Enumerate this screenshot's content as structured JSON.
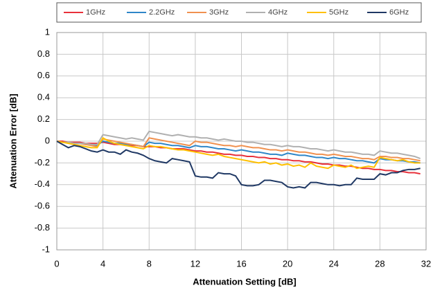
{
  "chart_data": {
    "type": "line",
    "xlabel": "Attenuation Setting [dB]",
    "ylabel": "Attenuation Error [dB]",
    "x": [
      0,
      0.5,
      1,
      1.5,
      2,
      2.5,
      3,
      3.5,
      4,
      4.5,
      5,
      5.5,
      6,
      6.5,
      7,
      7.5,
      8,
      8.5,
      9,
      9.5,
      10,
      10.5,
      11,
      11.5,
      12,
      12.5,
      13,
      13.5,
      14,
      14.5,
      15,
      15.5,
      16,
      16.5,
      17,
      17.5,
      18,
      18.5,
      19,
      19.5,
      20,
      20.5,
      21,
      21.5,
      22,
      22.5,
      23,
      23.5,
      24,
      24.5,
      25,
      25.5,
      26,
      26.5,
      27,
      27.5,
      28,
      28.5,
      29,
      29.5,
      30,
      30.5,
      31,
      31.5
    ],
    "series": [
      {
        "name": "1GHz",
        "color": "#e8303a",
        "values": [
          0,
          0,
          -0.01,
          -0.01,
          -0.01,
          -0.02,
          -0.02,
          -0.02,
          -0.01,
          -0.02,
          -0.03,
          -0.03,
          -0.04,
          -0.04,
          -0.04,
          -0.05,
          -0.05,
          -0.05,
          -0.06,
          -0.06,
          -0.07,
          -0.07,
          -0.07,
          -0.08,
          -0.09,
          -0.09,
          -0.1,
          -0.1,
          -0.11,
          -0.12,
          -0.12,
          -0.13,
          -0.13,
          -0.14,
          -0.14,
          -0.15,
          -0.15,
          -0.16,
          -0.16,
          -0.17,
          -0.17,
          -0.18,
          -0.18,
          -0.19,
          -0.19,
          -0.2,
          -0.21,
          -0.21,
          -0.22,
          -0.22,
          -0.23,
          -0.23,
          -0.24,
          -0.25,
          -0.25,
          -0.26,
          -0.26,
          -0.27,
          -0.27,
          -0.28,
          -0.28,
          -0.29,
          -0.29,
          -0.3
        ]
      },
      {
        "name": "2.2GHz",
        "color": "#2e86c8",
        "values": [
          0,
          -0.01,
          -0.01,
          -0.02,
          -0.02,
          -0.03,
          -0.03,
          -0.04,
          0,
          -0.01,
          -0.02,
          -0.02,
          -0.03,
          -0.03,
          -0.04,
          -0.05,
          -0.01,
          -0.02,
          -0.02,
          -0.03,
          -0.04,
          -0.04,
          -0.05,
          -0.06,
          -0.04,
          -0.05,
          -0.05,
          -0.06,
          -0.07,
          -0.07,
          -0.08,
          -0.09,
          -0.08,
          -0.09,
          -0.1,
          -0.1,
          -0.11,
          -0.12,
          -0.12,
          -0.13,
          -0.11,
          -0.12,
          -0.13,
          -0.13,
          -0.14,
          -0.15,
          -0.15,
          -0.16,
          -0.15,
          -0.16,
          -0.16,
          -0.17,
          -0.18,
          -0.18,
          -0.19,
          -0.2,
          -0.16,
          -0.17,
          -0.17,
          -0.18,
          -0.18,
          -0.19,
          -0.19,
          -0.2
        ]
      },
      {
        "name": "3GHz",
        "color": "#f0914f",
        "values": [
          0,
          -0.01,
          -0.01,
          -0.02,
          -0.02,
          -0.03,
          -0.04,
          -0.05,
          0.02,
          0.01,
          0,
          -0.01,
          -0.02,
          -0.03,
          -0.04,
          -0.05,
          0.03,
          0.02,
          0.01,
          0,
          -0.01,
          -0.02,
          -0.03,
          -0.04,
          0,
          -0.01,
          -0.01,
          -0.02,
          -0.03,
          -0.04,
          -0.04,
          -0.05,
          -0.04,
          -0.05,
          -0.06,
          -0.06,
          -0.07,
          -0.08,
          -0.08,
          -0.09,
          -0.08,
          -0.09,
          -0.1,
          -0.1,
          -0.11,
          -0.12,
          -0.12,
          -0.13,
          -0.12,
          -0.13,
          -0.14,
          -0.14,
          -0.15,
          -0.16,
          -0.16,
          -0.17,
          -0.14,
          -0.14,
          -0.15,
          -0.15,
          -0.16,
          -0.16,
          -0.17,
          -0.18
        ]
      },
      {
        "name": "4GHz",
        "color": "#b0b0b0",
        "values": [
          0,
          -0.01,
          -0.01,
          -0.02,
          -0.02,
          -0.02,
          -0.03,
          -0.03,
          0.06,
          0.05,
          0.04,
          0.03,
          0.02,
          0.03,
          0.02,
          0.01,
          0.09,
          0.08,
          0.07,
          0.06,
          0.05,
          0.06,
          0.05,
          0.04,
          0.04,
          0.03,
          0.03,
          0.02,
          0.01,
          0.02,
          0.01,
          0,
          0,
          -0.01,
          -0.01,
          -0.02,
          -0.03,
          -0.03,
          -0.04,
          -0.05,
          -0.04,
          -0.05,
          -0.05,
          -0.06,
          -0.07,
          -0.07,
          -0.08,
          -0.09,
          -0.08,
          -0.09,
          -0.1,
          -0.1,
          -0.11,
          -0.12,
          -0.12,
          -0.13,
          -0.09,
          -0.1,
          -0.11,
          -0.11,
          -0.12,
          -0.13,
          -0.14,
          -0.16
        ]
      },
      {
        "name": "5GHz",
        "color": "#ffc000",
        "values": [
          0,
          -0.01,
          -0.02,
          -0.03,
          -0.04,
          -0.05,
          -0.06,
          -0.06,
          0.03,
          0,
          -0.02,
          -0.03,
          -0.04,
          -0.05,
          -0.06,
          -0.07,
          -0.04,
          -0.05,
          -0.05,
          -0.06,
          -0.07,
          -0.08,
          -0.08,
          -0.09,
          -0.1,
          -0.11,
          -0.12,
          -0.13,
          -0.12,
          -0.14,
          -0.15,
          -0.16,
          -0.17,
          -0.18,
          -0.19,
          -0.2,
          -0.19,
          -0.21,
          -0.2,
          -0.22,
          -0.21,
          -0.23,
          -0.22,
          -0.24,
          -0.2,
          -0.23,
          -0.24,
          -0.25,
          -0.22,
          -0.23,
          -0.24,
          -0.22,
          -0.25,
          -0.24,
          -0.23,
          -0.24,
          -0.15,
          -0.16,
          -0.17,
          -0.18,
          -0.17,
          -0.19,
          -0.2,
          -0.2
        ]
      },
      {
        "name": "6GHz",
        "color": "#1f3864",
        "values": [
          0,
          -0.03,
          -0.06,
          -0.04,
          -0.05,
          -0.07,
          -0.09,
          -0.1,
          -0.08,
          -0.1,
          -0.1,
          -0.12,
          -0.08,
          -0.1,
          -0.11,
          -0.13,
          -0.16,
          -0.18,
          -0.19,
          -0.2,
          -0.16,
          -0.17,
          -0.18,
          -0.19,
          -0.32,
          -0.33,
          -0.33,
          -0.34,
          -0.29,
          -0.3,
          -0.3,
          -0.32,
          -0.4,
          -0.41,
          -0.41,
          -0.4,
          -0.36,
          -0.36,
          -0.37,
          -0.38,
          -0.42,
          -0.43,
          -0.42,
          -0.43,
          -0.38,
          -0.38,
          -0.39,
          -0.4,
          -0.4,
          -0.41,
          -0.4,
          -0.4,
          -0.34,
          -0.35,
          -0.35,
          -0.35,
          -0.3,
          -0.31,
          -0.29,
          -0.29,
          -0.27,
          -0.26,
          -0.26,
          -0.25
        ]
      }
    ],
    "xlim": [
      0,
      32
    ],
    "xticks": [
      0,
      4,
      8,
      12,
      16,
      20,
      24,
      28,
      32
    ],
    "ylim": [
      -1,
      1
    ],
    "yticks": [
      -1,
      -0.8,
      -0.6,
      -0.4,
      -0.2,
      0,
      0.2,
      0.4,
      0.6,
      0.8,
      1
    ],
    "grid": true,
    "legend": "top"
  }
}
